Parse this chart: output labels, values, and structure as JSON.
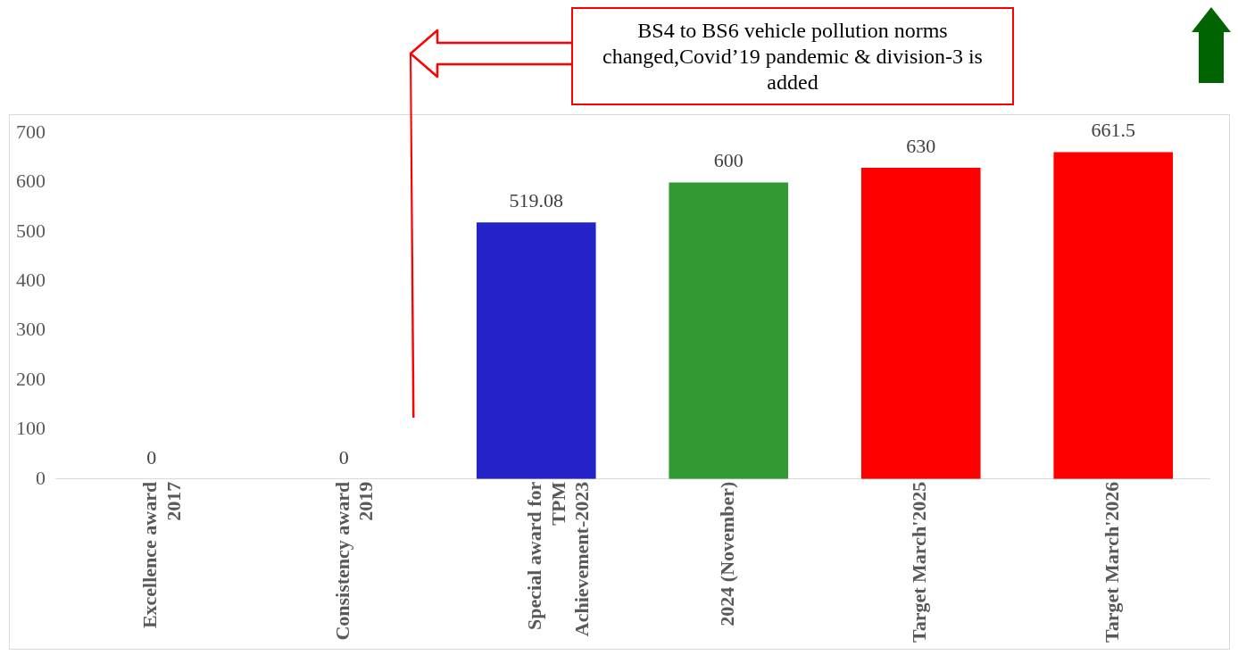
{
  "chart_data": {
    "type": "bar",
    "categories": [
      "Excellence award 2017",
      "Consistency award 2019",
      "Special award for TPM Achievement-2023",
      "2024 (November)",
      "Target March'2025",
      "Target March'2026"
    ],
    "values": [
      0,
      0,
      519.08,
      600,
      630,
      661.5
    ],
    "colors": [
      "#2323c8",
      "#2323c8",
      "#2323c8",
      "#339933",
      "#ff0000",
      "#ff0000"
    ],
    "ylim": [
      0,
      700
    ],
    "yticks": [
      0,
      100,
      200,
      300,
      400,
      500,
      600,
      700
    ],
    "grid": false,
    "legend": false,
    "data_labels": true,
    "annotations": [
      "BS4 to BS6  vehicle pollution norms changed,Covid’19 pandemic & division-3 is added"
    ]
  }
}
